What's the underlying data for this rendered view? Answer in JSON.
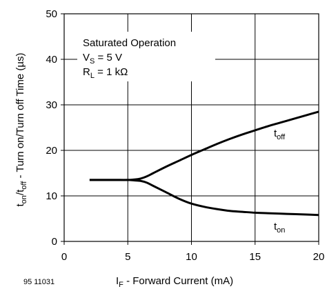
{
  "chart_data": {
    "type": "line",
    "xlabel_main": "I",
    "xlabel_sub": "F",
    "xlabel_rest": " - Forward Current (mA)",
    "ylabel_parts": {
      "t1": "t",
      "s1": "on",
      "sep": "/t",
      "s2": "off",
      "rest": " - Turn on/Turn off Time (µs)"
    },
    "xlim": [
      0,
      20
    ],
    "ylim": [
      0,
      50
    ],
    "xticks": [
      "0",
      "5",
      "10",
      "15",
      "20"
    ],
    "yticks": [
      "0",
      "10",
      "20",
      "30",
      "40",
      "50"
    ],
    "grid": true,
    "annotation": {
      "line1": "Saturated Operation",
      "line2_main": "V",
      "line2_sub": "S",
      "line2_rest": " = 5 V",
      "line3_main": "R",
      "line3_sub": "L",
      "line3_rest": " = 1 kΩ"
    },
    "series": [
      {
        "label_main": "t",
        "label_sub": "off",
        "x": [
          2,
          3,
          4,
          5,
          5.5,
          6,
          6.5,
          7,
          8,
          9,
          10,
          11,
          12,
          13,
          14,
          15,
          16,
          17,
          18,
          19,
          20
        ],
        "y": [
          13.5,
          13.5,
          13.5,
          13.5,
          13.6,
          13.8,
          14.3,
          15.0,
          16.4,
          17.7,
          19.0,
          20.2,
          21.4,
          22.5,
          23.5,
          24.4,
          25.3,
          26.1,
          26.9,
          27.7,
          28.5
        ]
      },
      {
        "label_main": "t",
        "label_sub": "on",
        "x": [
          2,
          3,
          4,
          5,
          5.5,
          6,
          6.5,
          7,
          8,
          9,
          10,
          11,
          12,
          13,
          14,
          15,
          16,
          17,
          18,
          19,
          20
        ],
        "y": [
          13.5,
          13.5,
          13.5,
          13.5,
          13.4,
          13.3,
          12.9,
          12.2,
          10.8,
          9.4,
          8.3,
          7.6,
          7.1,
          6.7,
          6.5,
          6.3,
          6.2,
          6.1,
          6.0,
          5.9,
          5.8
        ]
      }
    ]
  },
  "figure_id": "95 11031"
}
